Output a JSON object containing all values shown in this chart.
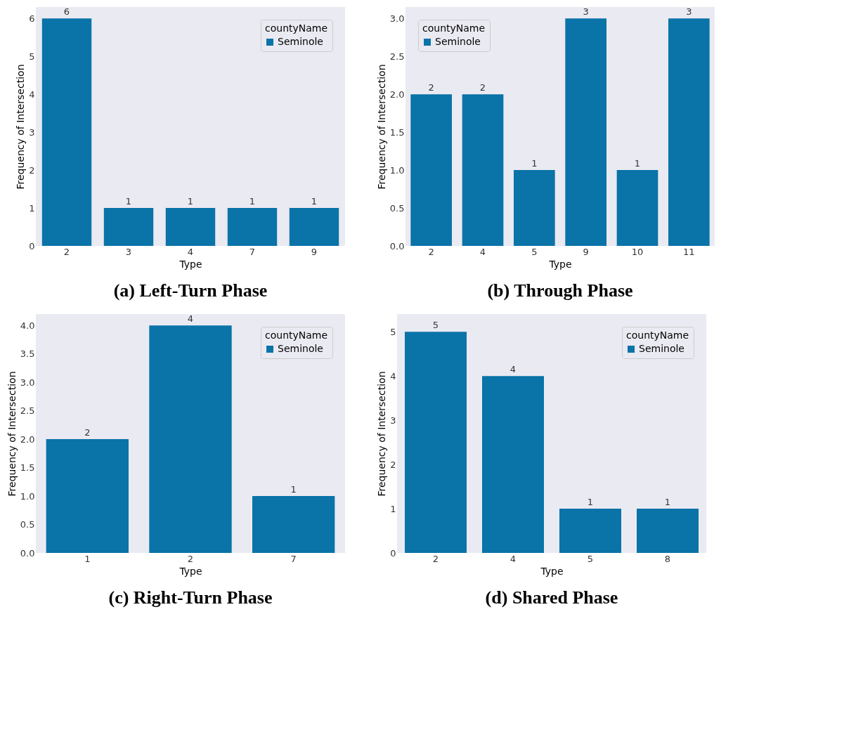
{
  "chart_data": [
    {
      "type": "bar",
      "title": "(a) Left-Turn Phase",
      "xlabel": "Type",
      "ylabel": "Frequency of Intersection",
      "legend_title": "countyName",
      "legend": "top right",
      "grid": false,
      "data_labels": true,
      "categories": [
        "2",
        "3",
        "4",
        "7",
        "9"
      ],
      "series": [
        {
          "name": "Seminole",
          "color": "#0a73a8",
          "values": [
            6,
            1,
            1,
            1,
            1
          ]
        }
      ],
      "ylim": [
        0,
        6.3
      ],
      "yticks": [
        0,
        1,
        2,
        3,
        4,
        5,
        6
      ]
    },
    {
      "type": "bar",
      "title": "(b) Through Phase",
      "xlabel": "Type",
      "ylabel": "Frequency of Intersection",
      "legend_title": "countyName",
      "legend": "top left",
      "grid": false,
      "data_labels": true,
      "categories": [
        "2",
        "4",
        "5",
        "9",
        "10",
        "11"
      ],
      "series": [
        {
          "name": "Seminole",
          "color": "#0a73a8",
          "values": [
            2,
            2,
            1,
            3,
            1,
            3
          ]
        }
      ],
      "ylim": [
        0,
        3.15
      ],
      "yticks": [
        {
          "value": 0,
          "label": "0.0"
        },
        0.5,
        {
          "value": 1,
          "label": "1.0"
        },
        1.5,
        {
          "value": 2,
          "label": "2.0"
        },
        2.5,
        {
          "value": 3,
          "label": "3.0"
        }
      ]
    },
    {
      "type": "bar",
      "title": "(c) Right-Turn Phase",
      "xlabel": "Type",
      "ylabel": "Frequency of Intersection",
      "legend_title": "countyName",
      "legend": "top right",
      "grid": false,
      "data_labels": true,
      "categories": [
        "1",
        "2",
        "7"
      ],
      "series": [
        {
          "name": "Seminole",
          "color": "#0a73a8",
          "values": [
            2,
            4,
            1
          ]
        }
      ],
      "ylim": [
        0,
        4.2
      ],
      "yticks": [
        {
          "value": 0,
          "label": "0.0"
        },
        0.5,
        {
          "value": 1,
          "label": "1.0"
        },
        1.5,
        {
          "value": 2,
          "label": "2.0"
        },
        2.5,
        {
          "value": 3,
          "label": "3.0"
        },
        3.5,
        {
          "value": 4,
          "label": "4.0"
        }
      ]
    },
    {
      "type": "bar",
      "title": "(d) Shared Phase",
      "xlabel": "Type",
      "ylabel": "Frequency of Intersection",
      "legend_title": "countyName",
      "legend": "top right",
      "grid": false,
      "data_labels": true,
      "categories": [
        "2",
        "4",
        "5",
        "8"
      ],
      "series": [
        {
          "name": "Seminole",
          "color": "#0a73a8",
          "values": [
            5,
            4,
            1,
            1
          ]
        }
      ],
      "ylim": [
        0,
        5.4
      ],
      "yticks": [
        0,
        1,
        2,
        3,
        4,
        5
      ]
    }
  ]
}
